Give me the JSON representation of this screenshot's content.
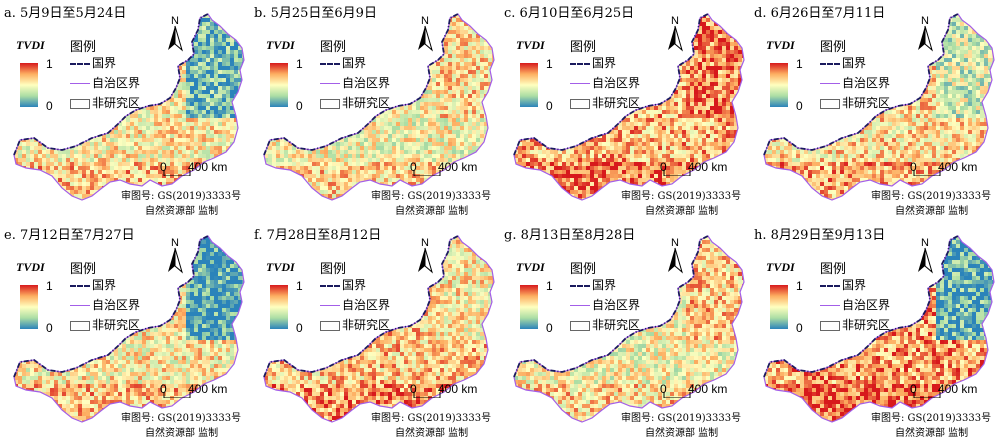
{
  "panels": [
    {
      "label": "a. 5月9日至5月24日",
      "intensity": 0.55,
      "north_blue": 0.85
    },
    {
      "label": "b. 5月25日至6月9日",
      "intensity": 0.5,
      "north_blue": 0.4
    },
    {
      "label": "c. 6月10日至6月25日",
      "intensity": 0.7,
      "north_blue": 0.2
    },
    {
      "label": "d. 6月26日至7月11日",
      "intensity": 0.6,
      "north_blue": 0.6
    },
    {
      "label": "e. 7月12日至7月27日",
      "intensity": 0.55,
      "north_blue": 0.95
    },
    {
      "label": "f. 7月28日至8月12日",
      "intensity": 0.65,
      "north_blue": 0.45
    },
    {
      "label": "g. 8月13日至8月28日",
      "intensity": 0.5,
      "north_blue": 0.35
    },
    {
      "label": "h. 8月29日至9月13日",
      "intensity": 0.75,
      "north_blue": 0.9
    }
  ],
  "legend": {
    "index_name": "TVDI",
    "title": "图例",
    "max_label": "1",
    "min_label": "0",
    "border_label": "国界",
    "autonomous_label": "自治区界",
    "non_study_label": "非研究区",
    "north_label": "N"
  },
  "scale": {
    "zero": "0",
    "distance": "400 km"
  },
  "credit": {
    "line1": "审图号: GS(2019)3333号",
    "line2": "自然资源部 监制"
  },
  "colors": {
    "high": "#d7191c",
    "mid": "#ffffbf",
    "low": "#2b83ba",
    "border": "#1a1a5e",
    "boundary": "#a35ee8"
  }
}
